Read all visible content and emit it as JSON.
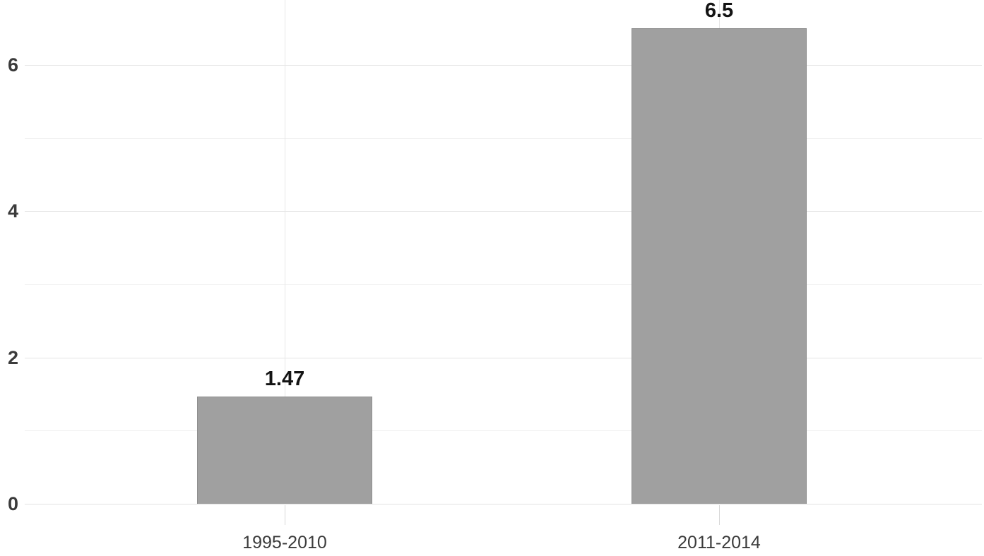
{
  "chart_data": {
    "type": "bar",
    "title": "",
    "xlabel": "",
    "ylabel": "",
    "categories": [
      "1995-2010",
      "2011-2014"
    ],
    "values": [
      1.47,
      6.5
    ],
    "value_labels": [
      "1.47",
      "6.5"
    ],
    "ylim": [
      0,
      6.89
    ],
    "yticks_major": [
      0,
      2,
      4,
      6
    ],
    "yticks_minor": [
      1,
      3,
      5
    ],
    "grid": "on",
    "legend": "none",
    "colors": {
      "background": "#ffffff",
      "bar_fill": "#a0a0a0",
      "bar_border": "#8e8e8e",
      "grid_major": "#e3e3e3",
      "grid_minor": "#efefef",
      "grid_vertical": "#e7e7e7",
      "axis_tick": "#d9d9d9",
      "axis_label_text": "#3b3b3b",
      "value_label_text": "#141414"
    }
  }
}
